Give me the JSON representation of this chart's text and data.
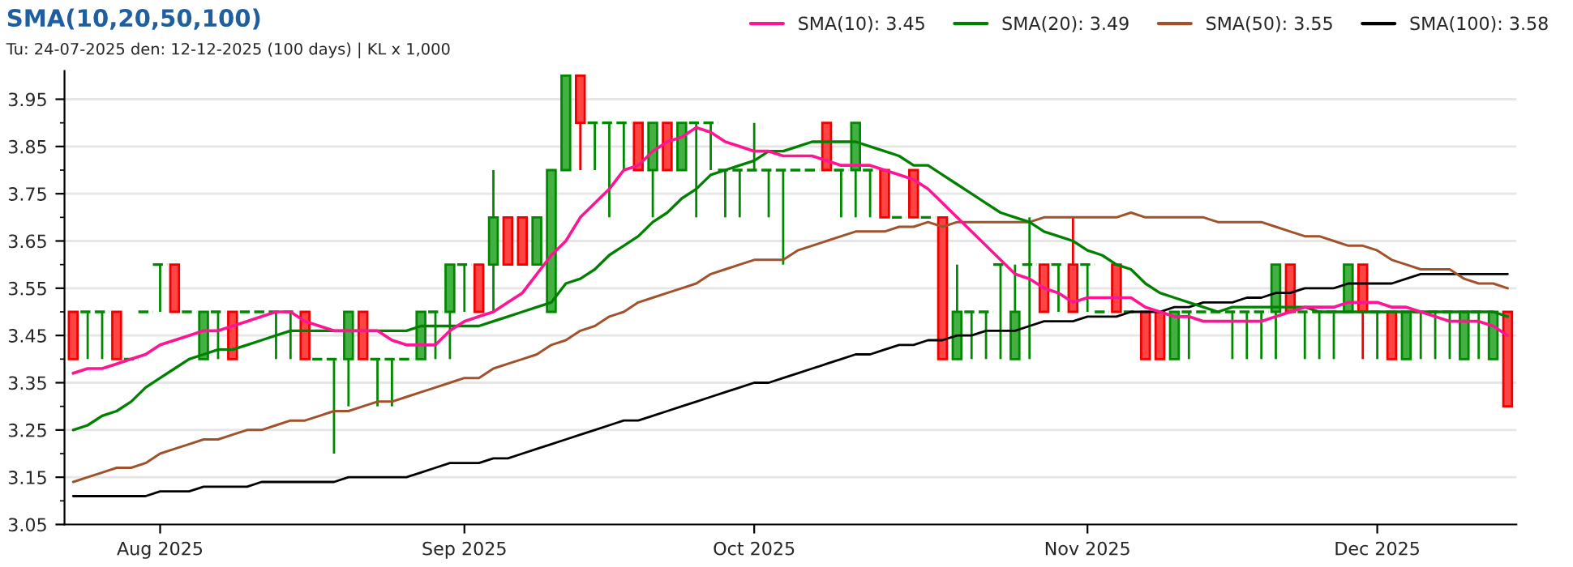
{
  "chart_data": {
    "type": "candlestick",
    "title": "SMA(10,20,50,100)",
    "subtitle": "Tu: 24-07-2025 den: 12-12-2025 (100 days) | KL x 1,000",
    "categories": [
      null,
      null,
      null,
      null,
      null,
      null,
      "Aug 2025",
      null,
      null,
      null,
      null,
      null,
      null,
      null,
      null,
      null,
      null,
      null,
      null,
      null,
      null,
      null,
      null,
      null,
      null,
      null,
      null,
      "Sep 2025",
      null,
      null,
      null,
      null,
      null,
      null,
      null,
      null,
      null,
      null,
      null,
      null,
      null,
      null,
      null,
      null,
      null,
      null,
      null,
      "Oct 2025",
      null,
      null,
      null,
      null,
      null,
      null,
      null,
      null,
      null,
      null,
      null,
      null,
      null,
      null,
      null,
      null,
      null,
      null,
      null,
      null,
      null,
      null,
      "Nov 2025",
      null,
      null,
      null,
      null,
      null,
      null,
      null,
      null,
      null,
      null,
      null,
      null,
      null,
      null,
      null,
      null,
      null,
      null,
      null,
      "Dec 2025",
      null,
      null,
      null,
      null,
      null,
      null,
      null,
      null,
      null
    ],
    "ohlc": [
      [
        3.5,
        3.5,
        3.4,
        3.4
      ],
      [
        3.5,
        3.5,
        3.4,
        3.5
      ],
      [
        3.5,
        3.5,
        3.4,
        3.5
      ],
      [
        3.5,
        3.5,
        3.4,
        3.4
      ],
      [
        3.4,
        3.4,
        3.4,
        3.4
      ],
      [
        3.5,
        3.5,
        3.5,
        3.5
      ],
      [
        3.6,
        3.6,
        3.5,
        3.6
      ],
      [
        3.6,
        3.6,
        3.5,
        3.5
      ],
      [
        3.5,
        3.5,
        3.5,
        3.5
      ],
      [
        3.4,
        3.5,
        3.4,
        3.5
      ],
      [
        3.5,
        3.5,
        3.4,
        3.5
      ],
      [
        3.5,
        3.5,
        3.4,
        3.4
      ],
      [
        3.5,
        3.5,
        3.5,
        3.5
      ],
      [
        3.5,
        3.5,
        3.5,
        3.5
      ],
      [
        3.5,
        3.5,
        3.4,
        3.5
      ],
      [
        3.5,
        3.5,
        3.4,
        3.5
      ],
      [
        3.5,
        3.5,
        3.4,
        3.4
      ],
      [
        3.4,
        3.4,
        3.4,
        3.4
      ],
      [
        3.4,
        3.4,
        3.2,
        3.4
      ],
      [
        3.4,
        3.5,
        3.3,
        3.5
      ],
      [
        3.5,
        3.5,
        3.4,
        3.4
      ],
      [
        3.4,
        3.4,
        3.3,
        3.4
      ],
      [
        3.4,
        3.4,
        3.3,
        3.4
      ],
      [
        3.4,
        3.4,
        3.4,
        3.4
      ],
      [
        3.4,
        3.5,
        3.4,
        3.5
      ],
      [
        3.5,
        3.5,
        3.4,
        3.5
      ],
      [
        3.5,
        3.6,
        3.4,
        3.6
      ],
      [
        3.6,
        3.6,
        3.5,
        3.6
      ],
      [
        3.6,
        3.6,
        3.5,
        3.5
      ],
      [
        3.6,
        3.8,
        3.5,
        3.7
      ],
      [
        3.7,
        3.7,
        3.6,
        3.6
      ],
      [
        3.7,
        3.7,
        3.6,
        3.6
      ],
      [
        3.6,
        3.7,
        3.6,
        3.7
      ],
      [
        3.5,
        3.8,
        3.5,
        3.8
      ],
      [
        3.8,
        4.0,
        3.8,
        4.0
      ],
      [
        4.0,
        4.0,
        3.8,
        3.9
      ],
      [
        3.9,
        3.9,
        3.8,
        3.9
      ],
      [
        3.9,
        3.9,
        3.7,
        3.9
      ],
      [
        3.9,
        3.9,
        3.8,
        3.9
      ],
      [
        3.9,
        3.9,
        3.8,
        3.8
      ],
      [
        3.8,
        3.9,
        3.7,
        3.9
      ],
      [
        3.9,
        3.9,
        3.8,
        3.8
      ],
      [
        3.8,
        3.9,
        3.8,
        3.9
      ],
      [
        3.9,
        3.9,
        3.7,
        3.9
      ],
      [
        3.9,
        3.9,
        3.8,
        3.9
      ],
      [
        3.8,
        3.8,
        3.7,
        3.8
      ],
      [
        3.8,
        3.8,
        3.7,
        3.8
      ],
      [
        3.8,
        3.9,
        3.8,
        3.8
      ],
      [
        3.8,
        3.8,
        3.7,
        3.8
      ],
      [
        3.8,
        3.8,
        3.6,
        3.8
      ],
      [
        3.8,
        3.8,
        3.8,
        3.8
      ],
      [
        3.8,
        3.8,
        3.8,
        3.8
      ],
      [
        3.9,
        3.9,
        3.8,
        3.8
      ],
      [
        3.8,
        3.8,
        3.7,
        3.8
      ],
      [
        3.8,
        3.9,
        3.7,
        3.9
      ],
      [
        3.8,
        3.8,
        3.7,
        3.8
      ],
      [
        3.8,
        3.8,
        3.7,
        3.7
      ],
      [
        3.7,
        3.7,
        3.7,
        3.7
      ],
      [
        3.8,
        3.8,
        3.7,
        3.7
      ],
      [
        3.7,
        3.7,
        3.7,
        3.7
      ],
      [
        3.7,
        3.7,
        3.4,
        3.4
      ],
      [
        3.4,
        3.6,
        3.4,
        3.5
      ],
      [
        3.5,
        3.5,
        3.4,
        3.5
      ],
      [
        3.5,
        3.5,
        3.4,
        3.5
      ],
      [
        3.6,
        3.6,
        3.4,
        3.6
      ],
      [
        3.4,
        3.6,
        3.4,
        3.5
      ],
      [
        3.6,
        3.7,
        3.4,
        3.6
      ],
      [
        3.6,
        3.6,
        3.5,
        3.5
      ],
      [
        3.6,
        3.6,
        3.5,
        3.6
      ],
      [
        3.6,
        3.7,
        3.5,
        3.5
      ],
      [
        3.6,
        3.6,
        3.5,
        3.6
      ],
      [
        3.5,
        3.5,
        3.5,
        3.5
      ],
      [
        3.6,
        3.6,
        3.5,
        3.5
      ],
      [
        3.5,
        3.5,
        3.5,
        3.5
      ],
      [
        3.5,
        3.5,
        3.4,
        3.4
      ],
      [
        3.5,
        3.5,
        3.4,
        3.4
      ],
      [
        3.4,
        3.5,
        3.4,
        3.5
      ],
      [
        3.5,
        3.5,
        3.4,
        3.5
      ],
      [
        3.5,
        3.5,
        3.5,
        3.5
      ],
      [
        3.5,
        3.5,
        3.5,
        3.5
      ],
      [
        3.5,
        3.5,
        3.4,
        3.5
      ],
      [
        3.5,
        3.5,
        3.4,
        3.5
      ],
      [
        3.5,
        3.5,
        3.4,
        3.5
      ],
      [
        3.5,
        3.6,
        3.4,
        3.6
      ],
      [
        3.6,
        3.6,
        3.5,
        3.5
      ],
      [
        3.5,
        3.5,
        3.4,
        3.5
      ],
      [
        3.5,
        3.5,
        3.4,
        3.5
      ],
      [
        3.5,
        3.5,
        3.4,
        3.5
      ],
      [
        3.5,
        3.6,
        3.5,
        3.6
      ],
      [
        3.6,
        3.6,
        3.4,
        3.5
      ],
      [
        3.5,
        3.5,
        3.4,
        3.5
      ],
      [
        3.5,
        3.5,
        3.4,
        3.4
      ],
      [
        3.4,
        3.5,
        3.4,
        3.5
      ],
      [
        3.5,
        3.5,
        3.4,
        3.5
      ],
      [
        3.5,
        3.5,
        3.4,
        3.5
      ],
      [
        3.5,
        3.5,
        3.4,
        3.5
      ],
      [
        3.4,
        3.5,
        3.4,
        3.5
      ],
      [
        3.5,
        3.5,
        3.4,
        3.5
      ],
      [
        3.4,
        3.5,
        3.4,
        3.5
      ],
      [
        3.5,
        3.5,
        3.3,
        3.3
      ]
    ],
    "series": [
      {
        "type": "line",
        "name": "SMA(10): 3.45",
        "color": "#ff1493",
        "values": [
          3.37,
          3.38,
          3.38,
          3.39,
          3.4,
          3.41,
          3.43,
          3.44,
          3.45,
          3.46,
          3.46,
          3.47,
          3.48,
          3.49,
          3.5,
          3.5,
          3.48,
          3.47,
          3.46,
          3.46,
          3.46,
          3.46,
          3.44,
          3.43,
          3.43,
          3.43,
          3.46,
          3.48,
          3.49,
          3.5,
          3.52,
          3.54,
          3.58,
          3.62,
          3.65,
          3.7,
          3.73,
          3.76,
          3.8,
          3.81,
          3.84,
          3.86,
          3.87,
          3.89,
          3.88,
          3.86,
          3.85,
          3.84,
          3.84,
          3.83,
          3.83,
          3.83,
          3.82,
          3.81,
          3.81,
          3.81,
          3.8,
          3.79,
          3.78,
          3.76,
          3.73,
          3.7,
          3.67,
          3.64,
          3.61,
          3.58,
          3.57,
          3.55,
          3.54,
          3.52,
          3.53,
          3.53,
          3.53,
          3.53,
          3.51,
          3.5,
          3.49,
          3.49,
          3.48,
          3.48,
          3.48,
          3.48,
          3.48,
          3.49,
          3.5,
          3.51,
          3.51,
          3.51,
          3.52,
          3.52,
          3.52,
          3.51,
          3.51,
          3.5,
          3.49,
          3.48,
          3.48,
          3.48,
          3.47,
          3.45
        ]
      },
      {
        "type": "line",
        "name": "SMA(20): 3.49",
        "color": "#008000",
        "values": [
          3.25,
          3.26,
          3.28,
          3.29,
          3.31,
          3.34,
          3.36,
          3.38,
          3.4,
          3.41,
          3.42,
          3.42,
          3.43,
          3.44,
          3.45,
          3.46,
          3.46,
          3.46,
          3.46,
          3.46,
          3.46,
          3.46,
          3.46,
          3.46,
          3.47,
          3.47,
          3.47,
          3.47,
          3.47,
          3.48,
          3.49,
          3.5,
          3.51,
          3.52,
          3.56,
          3.57,
          3.59,
          3.62,
          3.64,
          3.66,
          3.69,
          3.71,
          3.74,
          3.76,
          3.79,
          3.8,
          3.81,
          3.82,
          3.84,
          3.84,
          3.85,
          3.86,
          3.86,
          3.86,
          3.86,
          3.85,
          3.84,
          3.83,
          3.81,
          3.81,
          3.79,
          3.77,
          3.75,
          3.73,
          3.71,
          3.7,
          3.69,
          3.67,
          3.66,
          3.65,
          3.63,
          3.62,
          3.6,
          3.59,
          3.56,
          3.54,
          3.53,
          3.52,
          3.51,
          3.5,
          3.51,
          3.51,
          3.51,
          3.51,
          3.51,
          3.51,
          3.5,
          3.5,
          3.5,
          3.5,
          3.5,
          3.5,
          3.5,
          3.5,
          3.5,
          3.5,
          3.5,
          3.5,
          3.5,
          3.49
        ]
      },
      {
        "type": "line",
        "name": "SMA(50): 3.55",
        "color": "#a0522d",
        "values": [
          3.14,
          3.15,
          3.16,
          3.17,
          3.17,
          3.18,
          3.2,
          3.21,
          3.22,
          3.23,
          3.23,
          3.24,
          3.25,
          3.25,
          3.26,
          3.27,
          3.27,
          3.28,
          3.29,
          3.29,
          3.3,
          3.31,
          3.31,
          3.32,
          3.33,
          3.34,
          3.35,
          3.36,
          3.36,
          3.38,
          3.39,
          3.4,
          3.41,
          3.43,
          3.44,
          3.46,
          3.47,
          3.49,
          3.5,
          3.52,
          3.53,
          3.54,
          3.55,
          3.56,
          3.58,
          3.59,
          3.6,
          3.61,
          3.61,
          3.61,
          3.63,
          3.64,
          3.65,
          3.66,
          3.67,
          3.67,
          3.67,
          3.68,
          3.68,
          3.69,
          3.68,
          3.69,
          3.69,
          3.69,
          3.69,
          3.69,
          3.69,
          3.7,
          3.7,
          3.7,
          3.7,
          3.7,
          3.7,
          3.71,
          3.7,
          3.7,
          3.7,
          3.7,
          3.7,
          3.69,
          3.69,
          3.69,
          3.69,
          3.68,
          3.67,
          3.66,
          3.66,
          3.65,
          3.64,
          3.64,
          3.63,
          3.61,
          3.6,
          3.59,
          3.59,
          3.59,
          3.57,
          3.56,
          3.56,
          3.55
        ]
      },
      {
        "type": "line",
        "name": "SMA(100): 3.58",
        "color": "#000000",
        "values": [
          3.11,
          3.11,
          3.11,
          3.11,
          3.11,
          3.11,
          3.12,
          3.12,
          3.12,
          3.13,
          3.13,
          3.13,
          3.13,
          3.14,
          3.14,
          3.14,
          3.14,
          3.14,
          3.14,
          3.15,
          3.15,
          3.15,
          3.15,
          3.15,
          3.16,
          3.17,
          3.18,
          3.18,
          3.18,
          3.19,
          3.19,
          3.2,
          3.21,
          3.22,
          3.23,
          3.24,
          3.25,
          3.26,
          3.27,
          3.27,
          3.28,
          3.29,
          3.3,
          3.31,
          3.32,
          3.33,
          3.34,
          3.35,
          3.35,
          3.36,
          3.37,
          3.38,
          3.39,
          3.4,
          3.41,
          3.41,
          3.42,
          3.43,
          3.43,
          3.44,
          3.44,
          3.45,
          3.45,
          3.46,
          3.46,
          3.46,
          3.47,
          3.48,
          3.48,
          3.48,
          3.49,
          3.49,
          3.49,
          3.5,
          3.5,
          3.5,
          3.51,
          3.51,
          3.52,
          3.52,
          3.52,
          3.53,
          3.53,
          3.54,
          3.54,
          3.55,
          3.55,
          3.55,
          3.56,
          3.56,
          3.56,
          3.56,
          3.57,
          3.58,
          3.58,
          3.58,
          3.58,
          3.58,
          3.58,
          3.58
        ]
      }
    ],
    "ylim": [
      3.05,
      4.01
    ],
    "yticks": [
      3.05,
      3.15,
      3.25,
      3.35,
      3.45,
      3.55,
      3.65,
      3.75,
      3.85,
      3.95,
      {
        "value": 3.1,
        "label": null
      },
      {
        "value": 3.2,
        "label": null
      },
      {
        "value": 3.3,
        "label": null
      },
      {
        "value": 3.4,
        "label": null
      },
      {
        "value": 3.5,
        "label": null
      },
      {
        "value": 3.6,
        "label": null
      },
      {
        "value": 3.7,
        "label": null
      },
      {
        "value": 3.8,
        "label": null
      },
      {
        "value": 3.9,
        "label": null
      }
    ],
    "grid": "y",
    "legend": "top right"
  }
}
